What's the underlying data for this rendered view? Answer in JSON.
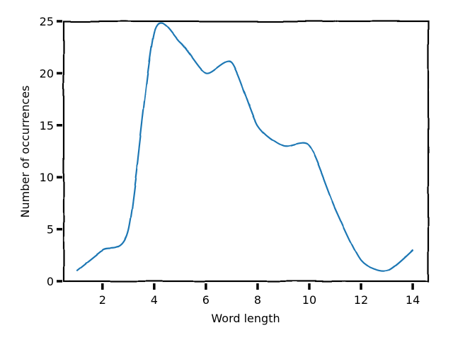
{
  "chart_data": {
    "type": "line",
    "title": "",
    "xlabel": "Word length",
    "ylabel": "Number of occurrences",
    "xlim": [
      0.5,
      14.6
    ],
    "ylim": [
      0,
      25
    ],
    "xticks": [
      2,
      4,
      6,
      8,
      10,
      12,
      14
    ],
    "yticks": [
      0,
      5,
      10,
      15,
      20,
      25
    ],
    "grid": false,
    "legend": "none",
    "style": "xkcd",
    "series": [
      {
        "color": "#1f77b4",
        "x": [
          1,
          2,
          3,
          4,
          5,
          6,
          7,
          8,
          9,
          10,
          11,
          12,
          13,
          14
        ],
        "y": [
          1,
          3,
          5,
          24,
          23,
          20,
          21,
          15,
          13,
          13,
          7,
          2,
          1,
          3
        ]
      }
    ]
  }
}
